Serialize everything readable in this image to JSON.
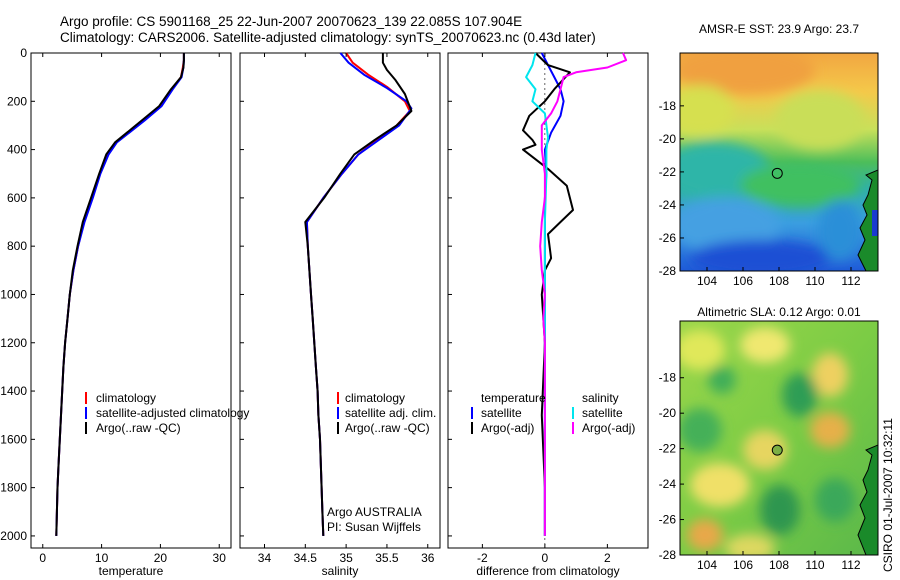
{
  "header": {
    "line1": "Argo profile: CS 5901168_25 22-Jun-2007 20070623_139 22.085S 107.904E",
    "line2": "Climatology: CARS2006. Satellite-adjusted climatology: synTS_20070623.nc (0.43d later)"
  },
  "colors": {
    "climatology": "#ff0000",
    "satellite": "#0000ff",
    "argo": "#000000",
    "salinity_satellite": "#00e5ee",
    "salinity_argo": "#ff00ff"
  },
  "chart_data": [
    {
      "type": "line",
      "name": "temperature profile",
      "xlabel": "temperature",
      "ylabel": "",
      "xlim": [
        -2,
        32
      ],
      "ylim": [
        2050,
        0
      ],
      "xticks": [
        0,
        10,
        20,
        30
      ],
      "yticks": [
        0,
        200,
        400,
        600,
        800,
        1000,
        1200,
        1400,
        1600,
        1800,
        2000
      ],
      "legend": [
        "climatology",
        "satellite-adjusted climatology",
        "Argo(..raw -QC)"
      ],
      "series": [
        {
          "name": "climatology",
          "color": "#ff0000",
          "points": [
            [
              24.0,
              0
            ],
            [
              24.0,
              30
            ],
            [
              23.8,
              60
            ],
            [
              23.5,
              100
            ],
            [
              22.0,
              150
            ],
            [
              20.0,
              220
            ],
            [
              17.0,
              280
            ],
            [
              14.5,
              330
            ],
            [
              12.4,
              370
            ],
            [
              11.0,
              420
            ],
            [
              9.7,
              500
            ],
            [
              8.4,
              600
            ],
            [
              7.0,
              700
            ],
            [
              6.0,
              800
            ],
            [
              5.2,
              900
            ],
            [
              4.6,
              1000
            ],
            [
              4.2,
              1100
            ],
            [
              3.8,
              1200
            ],
            [
              3.5,
              1300
            ],
            [
              3.3,
              1400
            ],
            [
              3.1,
              1500
            ],
            [
              2.9,
              1600
            ],
            [
              2.7,
              1700
            ],
            [
              2.5,
              1800
            ],
            [
              2.4,
              1900
            ],
            [
              2.3,
              2000
            ]
          ]
        },
        {
          "name": "satellite-adjusted climatology",
          "color": "#0000ff",
          "points": [
            [
              24.0,
              0
            ],
            [
              24.0,
              30
            ],
            [
              23.9,
              60
            ],
            [
              23.6,
              100
            ],
            [
              22.1,
              150
            ],
            [
              20.2,
              220
            ],
            [
              17.3,
              280
            ],
            [
              14.7,
              330
            ],
            [
              12.6,
              370
            ],
            [
              11.2,
              420
            ],
            [
              9.8,
              500
            ],
            [
              8.5,
              600
            ],
            [
              7.1,
              700
            ],
            [
              6.0,
              800
            ],
            [
              5.2,
              900
            ],
            [
              4.6,
              1000
            ],
            [
              4.2,
              1100
            ],
            [
              3.8,
              1200
            ],
            [
              3.5,
              1300
            ],
            [
              3.3,
              1400
            ],
            [
              3.1,
              1500
            ],
            [
              2.9,
              1600
            ],
            [
              2.7,
              1700
            ],
            [
              2.5,
              1800
            ],
            [
              2.4,
              1900
            ],
            [
              2.3,
              2000
            ]
          ]
        },
        {
          "name": "Argo(..raw -QC)",
          "color": "#000000",
          "points": [
            [
              24.0,
              0
            ],
            [
              24.0,
              30
            ],
            [
              23.9,
              60
            ],
            [
              23.5,
              100
            ],
            [
              21.8,
              150
            ],
            [
              19.8,
              220
            ],
            [
              16.8,
              280
            ],
            [
              14.3,
              330
            ],
            [
              12.3,
              370
            ],
            [
              10.8,
              420
            ],
            [
              9.6,
              500
            ],
            [
              8.2,
              600
            ],
            [
              6.8,
              700
            ],
            [
              5.9,
              800
            ],
            [
              5.1,
              900
            ],
            [
              4.6,
              1000
            ],
            [
              4.2,
              1100
            ],
            [
              3.8,
              1200
            ],
            [
              3.5,
              1300
            ],
            [
              3.3,
              1400
            ],
            [
              3.1,
              1500
            ],
            [
              2.9,
              1600
            ],
            [
              2.7,
              1700
            ],
            [
              2.5,
              1800
            ],
            [
              2.4,
              1900
            ],
            [
              2.3,
              2000
            ]
          ]
        }
      ]
    },
    {
      "type": "line",
      "name": "salinity profile",
      "xlabel": "salinity",
      "ylabel": "",
      "xlim": [
        33.7,
        36.15
      ],
      "ylim": [
        2050,
        0
      ],
      "xticks": [
        34,
        34.5,
        35,
        35.5,
        36
      ],
      "legend": [
        "climatology",
        "satellite adj. clim.",
        "Argo(..raw -QC)"
      ],
      "annotations": [
        "Argo AUSTRALIA",
        "PI: Susan Wijffels"
      ],
      "series": [
        {
          "name": "climatology",
          "color": "#ff0000",
          "points": [
            [
              35.0,
              0
            ],
            [
              35.08,
              40
            ],
            [
              35.27,
              90
            ],
            [
              35.5,
              140
            ],
            [
              35.72,
              200
            ],
            [
              35.78,
              240
            ],
            [
              35.62,
              300
            ],
            [
              35.38,
              360
            ],
            [
              35.15,
              420
            ],
            [
              34.95,
              500
            ],
            [
              34.72,
              600
            ],
            [
              34.52,
              700
            ],
            [
              34.53,
              800
            ],
            [
              34.55,
              900
            ],
            [
              34.57,
              1000
            ],
            [
              34.59,
              1100
            ],
            [
              34.61,
              1200
            ],
            [
              34.63,
              1300
            ],
            [
              34.65,
              1400
            ],
            [
              34.66,
              1500
            ],
            [
              34.68,
              1600
            ],
            [
              34.69,
              1700
            ],
            [
              34.7,
              1800
            ],
            [
              34.71,
              1900
            ],
            [
              34.72,
              2000
            ]
          ]
        },
        {
          "name": "satellite adj. clim.",
          "color": "#0000ff",
          "points": [
            [
              34.93,
              0
            ],
            [
              35.03,
              40
            ],
            [
              35.22,
              90
            ],
            [
              35.5,
              145
            ],
            [
              35.74,
              200
            ],
            [
              35.8,
              230
            ],
            [
              35.65,
              300
            ],
            [
              35.4,
              360
            ],
            [
              35.15,
              420
            ],
            [
              34.95,
              500
            ],
            [
              34.72,
              600
            ],
            [
              34.52,
              700
            ],
            [
              34.53,
              800
            ],
            [
              34.55,
              900
            ],
            [
              34.57,
              1000
            ],
            [
              34.59,
              1100
            ],
            [
              34.61,
              1200
            ],
            [
              34.63,
              1300
            ],
            [
              34.65,
              1400
            ],
            [
              34.66,
              1500
            ],
            [
              34.68,
              1600
            ],
            [
              34.69,
              1700
            ],
            [
              34.7,
              1800
            ],
            [
              34.71,
              1900
            ],
            [
              34.72,
              2000
            ]
          ]
        },
        {
          "name": "Argo(..raw -QC)",
          "color": "#000000",
          "points": [
            [
              35.45,
              0
            ],
            [
              35.45,
              40
            ],
            [
              35.5,
              70
            ],
            [
              35.6,
              110
            ],
            [
              35.72,
              170
            ],
            [
              35.8,
              240
            ],
            [
              35.62,
              300
            ],
            [
              35.35,
              360
            ],
            [
              35.1,
              420
            ],
            [
              34.93,
              500
            ],
            [
              34.73,
              600
            ],
            [
              34.5,
              700
            ],
            [
              34.53,
              800
            ],
            [
              34.55,
              900
            ],
            [
              34.57,
              1000
            ],
            [
              34.59,
              1100
            ],
            [
              34.61,
              1200
            ],
            [
              34.63,
              1300
            ],
            [
              34.65,
              1400
            ],
            [
              34.66,
              1500
            ],
            [
              34.68,
              1600
            ],
            [
              34.69,
              1700
            ],
            [
              34.7,
              1800
            ],
            [
              34.71,
              1900
            ],
            [
              34.72,
              2000
            ]
          ]
        }
      ]
    },
    {
      "type": "line",
      "name": "difference profile",
      "xlabel": "difference from climatology",
      "ylabel": "",
      "xlim": [
        -3.1,
        3.3
      ],
      "ylim": [
        2050,
        0
      ],
      "xticks": [
        -2,
        0,
        2
      ],
      "legend_left": [
        "temperature",
        "satellite",
        "Argo(-adj)"
      ],
      "legend_right": [
        "salinity",
        "satellite",
        "Argo(-adj)"
      ],
      "series": [
        {
          "name": "temperature satellite",
          "color": "#0000ff",
          "points": [
            [
              -0.1,
              0
            ],
            [
              0.1,
              50
            ],
            [
              0.3,
              100
            ],
            [
              0.5,
              150
            ],
            [
              0.6,
              200
            ],
            [
              0.5,
              260
            ],
            [
              0.2,
              330
            ],
            [
              0.0,
              400
            ],
            [
              0.05,
              500
            ],
            [
              0.0,
              600
            ],
            [
              0.0,
              800
            ],
            [
              0.0,
              1000
            ],
            [
              0.0,
              1500
            ],
            [
              0.0,
              2000
            ]
          ]
        },
        {
          "name": "temperature Argo(-adj)",
          "color": "#000000",
          "points": [
            [
              -0.3,
              0
            ],
            [
              0.1,
              50
            ],
            [
              0.8,
              80
            ],
            [
              0.3,
              150
            ],
            [
              0.0,
              200
            ],
            [
              -0.5,
              260
            ],
            [
              -0.7,
              320
            ],
            [
              -0.4,
              360
            ],
            [
              -0.3,
              380
            ],
            [
              -0.7,
              400
            ],
            [
              0.1,
              480
            ],
            [
              0.7,
              550
            ],
            [
              0.9,
              650
            ],
            [
              0.5,
              700
            ],
            [
              0.1,
              750
            ],
            [
              0.2,
              850
            ],
            [
              0.0,
              900
            ],
            [
              -0.1,
              1000
            ],
            [
              0.0,
              1200
            ],
            [
              -0.1,
              1500
            ],
            [
              0.0,
              1800
            ],
            [
              0.0,
              2000
            ]
          ]
        },
        {
          "name": "salinity satellite",
          "color": "#00e5ee",
          "points": [
            [
              -0.3,
              0
            ],
            [
              -0.4,
              50
            ],
            [
              -0.6,
              100
            ],
            [
              -0.3,
              150
            ],
            [
              -0.4,
              200
            ],
            [
              0.0,
              250
            ],
            [
              0.1,
              350
            ],
            [
              0.05,
              400
            ],
            [
              0.05,
              500
            ],
            [
              0.0,
              700
            ],
            [
              0.0,
              1000
            ],
            [
              0.0,
              1500
            ],
            [
              0.0,
              2000
            ]
          ]
        },
        {
          "name": "salinity Argo(-adj)",
          "color": "#ff00ff",
          "points": [
            [
              2.5,
              0
            ],
            [
              2.6,
              30
            ],
            [
              2.0,
              60
            ],
            [
              1.0,
              80
            ],
            [
              0.6,
              100
            ],
            [
              0.5,
              150
            ],
            [
              0.4,
              200
            ],
            [
              0.2,
              250
            ],
            [
              -0.1,
              300
            ],
            [
              -0.1,
              400
            ],
            [
              0.0,
              500
            ],
            [
              0.0,
              600
            ],
            [
              -0.1,
              700
            ],
            [
              -0.15,
              800
            ],
            [
              -0.1,
              900
            ],
            [
              0.0,
              1000
            ],
            [
              -0.05,
              1100
            ],
            [
              0.0,
              1200
            ],
            [
              0.0,
              1500
            ],
            [
              0.0,
              2000
            ]
          ]
        }
      ]
    },
    {
      "type": "heatmap",
      "title": "AMSR-E SST: 23.9 Argo: 23.7",
      "xlim": [
        102.5,
        113.5
      ],
      "ylim": [
        -28,
        -14.8
      ],
      "xticks": [
        104,
        106,
        108,
        110,
        112
      ],
      "yticks": [
        -18,
        -20,
        -22,
        -24,
        -26,
        -28
      ],
      "argo_position": [
        107.904,
        -22.085
      ]
    },
    {
      "type": "heatmap",
      "title": "Altimetric SLA: 0.12 Argo: 0.01",
      "xlim": [
        102.5,
        113.5
      ],
      "ylim": [
        -28,
        -14.8
      ],
      "xticks": [
        104,
        106,
        108,
        110,
        112
      ],
      "yticks": [
        -18,
        -20,
        -22,
        -24,
        -26,
        -28
      ],
      "argo_position": [
        107.904,
        -22.085
      ]
    }
  ],
  "footer": {
    "credit": "CSIRO 01-Jul-2007 10:32:11"
  }
}
